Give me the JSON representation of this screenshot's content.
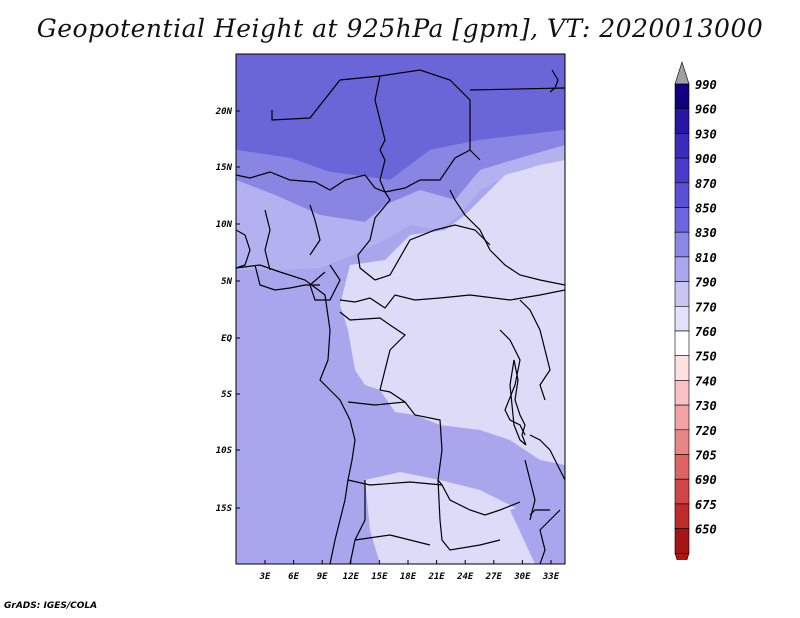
{
  "title": "Geopotential Height at 925hPa [gpm], VT: 2020013000",
  "footer": "GrADS: IGES/COLA",
  "map": {
    "projection": "lat-lon",
    "lat_labels": [
      "20N",
      "15N",
      "10N",
      "5N",
      "EQ",
      "5S",
      "10S",
      "15S"
    ],
    "lon_labels": [
      "3E",
      "6E",
      "9E",
      "12E",
      "15E",
      "18E",
      "21E",
      "24E",
      "27E",
      "30E",
      "33E"
    ],
    "field": "geopotential height 925hPa",
    "colors": {
      "high": "#6b66d8",
      "mid": "#a9a6ee",
      "low": "#dcdcf8",
      "border": "#000000",
      "frame": "#000000"
    }
  },
  "legend": {
    "levels": [
      "990",
      "960",
      "930",
      "900",
      "870",
      "850",
      "830",
      "810",
      "790",
      "770",
      "760",
      "750",
      "740",
      "730",
      "720",
      "705",
      "690",
      "675",
      "650"
    ],
    "colors": [
      "#0f0080",
      "#2716a3",
      "#3a2bbd",
      "#4a3bcc",
      "#5a50d6",
      "#6b66dd",
      "#8b87e6",
      "#aaa7ee",
      "#c7c5f3",
      "#e2e1fa",
      "#ffffff",
      "#fde0e0",
      "#f8c2c2",
      "#f1a3a3",
      "#e88585",
      "#de6363",
      "#d04545",
      "#bf2a2a",
      "#a51515"
    ],
    "top_arrow_color": "#a0a0a0",
    "bottom_arrow_color": "#b11414"
  }
}
